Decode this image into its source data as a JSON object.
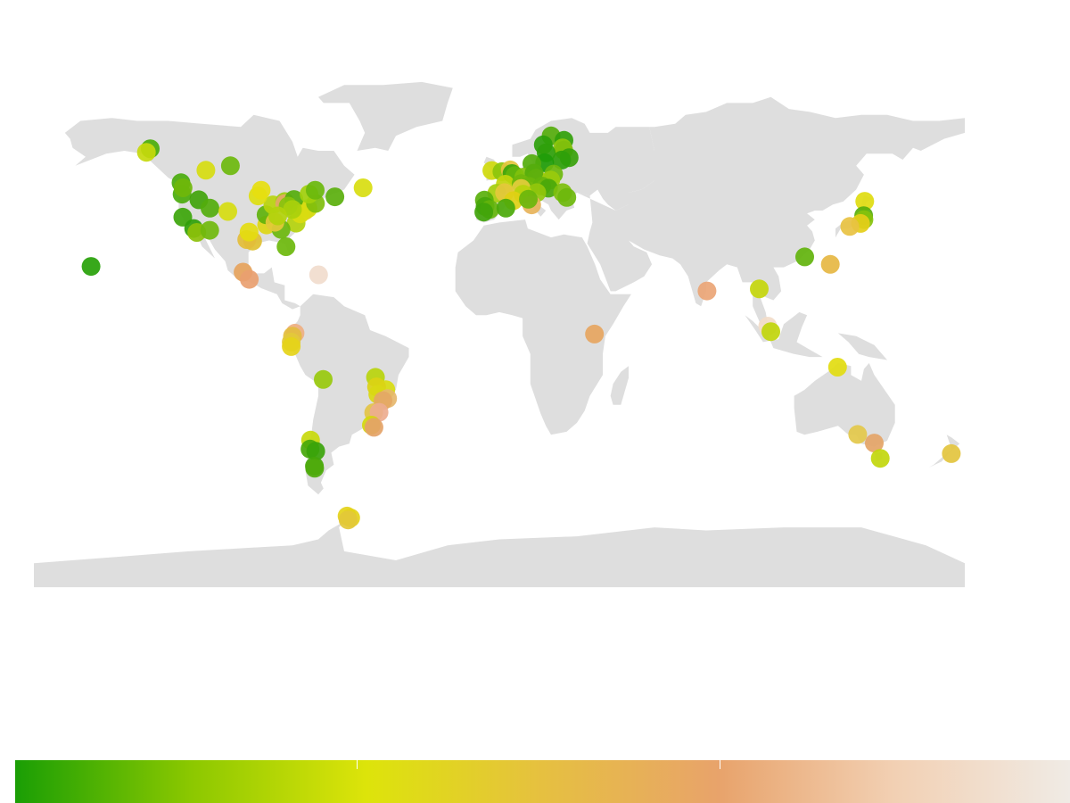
{
  "map": {
    "land_color": "#dedede",
    "background_color": "#ffffff",
    "continents": [
      "north-america",
      "greenland",
      "south-america",
      "europe",
      "africa",
      "asia",
      "australia",
      "antarctica",
      "new-zealand",
      "japan",
      "madagascar",
      "uk",
      "indonesia"
    ]
  },
  "legend": {
    "gradient_colors": [
      "#1a9e05",
      "#8cc800",
      "#dde40a",
      "#e6c040",
      "#e8a36b",
      "#f2d0b3",
      "#f0ebe5"
    ],
    "tick_count": 2
  },
  "points": [
    {
      "lat": 21.3,
      "lon": -157.9,
      "c": "#27a108"
    },
    {
      "lat": 60.7,
      "lon": -135.0,
      "c": "#4aac0a"
    },
    {
      "lat": 59.5,
      "lon": -136.5,
      "c": "#c6d90c"
    },
    {
      "lat": 53.5,
      "lon": -113.5,
      "c": "#d6dc10"
    },
    {
      "lat": 55.0,
      "lon": -104.0,
      "c": "#6cb80c"
    },
    {
      "lat": 49.3,
      "lon": -123.1,
      "c": "#4aab0c"
    },
    {
      "lat": 45.5,
      "lon": -122.7,
      "c": "#4aab0c"
    },
    {
      "lat": 47.6,
      "lon": -122.3,
      "c": "#6fb70a"
    },
    {
      "lat": 43.6,
      "lon": -116.2,
      "c": "#40a30a"
    },
    {
      "lat": 40.8,
      "lon": -111.9,
      "c": "#52ad0c"
    },
    {
      "lat": 39.7,
      "lon": -105.0,
      "c": "#d6dc10"
    },
    {
      "lat": 37.8,
      "lon": -122.4,
      "c": "#3ca50a"
    },
    {
      "lat": 34.0,
      "lon": -118.2,
      "c": "#30a00a"
    },
    {
      "lat": 32.7,
      "lon": -117.0,
      "c": "#8cc00a"
    },
    {
      "lat": 33.4,
      "lon": -112.0,
      "c": "#70b80c"
    },
    {
      "lat": 29.8,
      "lon": -95.4,
      "c": "#e0c030"
    },
    {
      "lat": 30.3,
      "lon": -97.7,
      "c": "#e3bd38"
    },
    {
      "lat": 32.8,
      "lon": -96.8,
      "c": "#e4dc10"
    },
    {
      "lat": 35.2,
      "lon": -90.0,
      "c": "#ddd614"
    },
    {
      "lat": 38.6,
      "lon": -90.2,
      "c": "#60b20c"
    },
    {
      "lat": 41.9,
      "lon": -87.6,
      "c": "#b9d40c"
    },
    {
      "lat": 44.9,
      "lon": -93.3,
      "c": "#ddde10"
    },
    {
      "lat": 46.8,
      "lon": -92.1,
      "c": "#e6de10"
    },
    {
      "lat": 43.0,
      "lon": -83.0,
      "c": "#9fcd0c"
    },
    {
      "lat": 42.3,
      "lon": -83.0,
      "c": "#e4a867"
    },
    {
      "lat": 39.9,
      "lon": -75.2,
      "c": "#e3c53b"
    },
    {
      "lat": 40.7,
      "lon": -74.0,
      "c": "#d7dc10"
    },
    {
      "lat": 42.4,
      "lon": -71.1,
      "c": "#7fbe0c"
    },
    {
      "lat": 43.7,
      "lon": -79.4,
      "c": "#55ad0c"
    },
    {
      "lat": 45.5,
      "lon": -73.6,
      "c": "#a2d00c"
    },
    {
      "lat": 46.8,
      "lon": -71.2,
      "c": "#6ab80c"
    },
    {
      "lat": 44.6,
      "lon": -63.6,
      "c": "#5aaf0c"
    },
    {
      "lat": 47.6,
      "lon": -52.7,
      "c": "#d8dd10"
    },
    {
      "lat": 35.8,
      "lon": -78.6,
      "c": "#b4d30c"
    },
    {
      "lat": 33.7,
      "lon": -84.4,
      "c": "#6bb70c"
    },
    {
      "lat": 36.1,
      "lon": -86.8,
      "c": "#e3c93a"
    },
    {
      "lat": 38.9,
      "lon": -77.0,
      "c": "#d9dc10"
    },
    {
      "lat": 41.5,
      "lon": -81.7,
      "c": "#88c30c"
    },
    {
      "lat": 40.4,
      "lon": -80.0,
      "c": "#a9d00c"
    },
    {
      "lat": 38.2,
      "lon": -85.7,
      "c": "#b2d30c"
    },
    {
      "lat": 27.9,
      "lon": -82.5,
      "c": "#6cb80c"
    },
    {
      "lat": 19.4,
      "lon": -99.1,
      "c": "#e6a35c"
    },
    {
      "lat": 17.0,
      "lon": -96.7,
      "c": "#e9a070"
    },
    {
      "lat": 18.5,
      "lon": -69.9,
      "c": "#f1dccd"
    },
    {
      "lat": -1.0,
      "lon": -79.0,
      "c": "#eeaf82"
    },
    {
      "lat": -2.0,
      "lon": -80.0,
      "c": "#e3bd3f"
    },
    {
      "lat": -4.0,
      "lon": -80.5,
      "c": "#e3c939"
    },
    {
      "lat": -5.5,
      "lon": -80.5,
      "c": "#e5d419"
    },
    {
      "lat": -16.5,
      "lon": -68.1,
      "c": "#98c90c"
    },
    {
      "lat": -15.8,
      "lon": -47.9,
      "c": "#b9d40c"
    },
    {
      "lat": -19.9,
      "lon": -43.9,
      "c": "#d8dc10"
    },
    {
      "lat": -19.0,
      "lon": -47.5,
      "c": "#dbd214"
    },
    {
      "lat": -21.5,
      "lon": -47.0,
      "c": "#d9d813"
    },
    {
      "lat": -22.9,
      "lon": -43.2,
      "c": "#e6b76e"
    },
    {
      "lat": -23.6,
      "lon": -45.0,
      "c": "#e4a864"
    },
    {
      "lat": -27.6,
      "lon": -48.6,
      "c": "#e3c345"
    },
    {
      "lat": -27.5,
      "lon": -46.5,
      "c": "#edad8f"
    },
    {
      "lat": -31.8,
      "lon": -49.5,
      "c": "#d4d80c"
    },
    {
      "lat": -32.5,
      "lon": -48.5,
      "c": "#e4a368"
    },
    {
      "lat": -36.8,
      "lon": -73.0,
      "c": "#c8d90c"
    },
    {
      "lat": -39.8,
      "lon": -73.2,
      "c": "#46a70a"
    },
    {
      "lat": -40.5,
      "lon": -71.0,
      "c": "#3aa30a"
    },
    {
      "lat": -45.5,
      "lon": -71.5,
      "c": "#44a70a"
    },
    {
      "lat": -46.2,
      "lon": -71.4,
      "c": "#4faa0c"
    },
    {
      "lat": -62.2,
      "lon": -58.9,
      "c": "#e4d31a"
    },
    {
      "lat": -62.8,
      "lon": -57.5,
      "c": "#e4d31a"
    },
    {
      "lat": -63.5,
      "lon": -58.5,
      "c": "#e3c83a"
    },
    {
      "lat": 65.0,
      "lon": 20.0,
      "c": "#55ad0c"
    },
    {
      "lat": 63.5,
      "lon": 25.0,
      "c": "#32a00a"
    },
    {
      "lat": 62.0,
      "lon": 17.0,
      "c": "#2ca00a"
    },
    {
      "lat": 61.0,
      "lon": 24.5,
      "c": "#8ec70c"
    },
    {
      "lat": 60.2,
      "lon": 24.9,
      "c": "#7fbe0c"
    },
    {
      "lat": 59.3,
      "lon": 18.1,
      "c": "#2f9f0a"
    },
    {
      "lat": 57.7,
      "lon": 27.0,
      "c": "#37a10a"
    },
    {
      "lat": 56.9,
      "lon": 24.1,
      "c": "#2ea00a"
    },
    {
      "lat": 56.0,
      "lon": 17.5,
      "c": "#1e9c08"
    },
    {
      "lat": 55.7,
      "lon": 12.6,
      "c": "#52ac0c"
    },
    {
      "lat": 53.4,
      "lon": -2.9,
      "c": "#cfd90c"
    },
    {
      "lat": 53.0,
      "lon": 1.0,
      "c": "#8bc50c"
    },
    {
      "lat": 53.6,
      "lon": 4.2,
      "c": "#e3c43c"
    },
    {
      "lat": 52.4,
      "lon": 4.9,
      "c": "#3aa40a"
    },
    {
      "lat": 51.7,
      "lon": 6.0,
      "c": "#63b50c"
    },
    {
      "lat": 51.2,
      "lon": 9.5,
      "c": "#82c20c"
    },
    {
      "lat": 50.8,
      "lon": 14.3,
      "c": "#d4d80c"
    },
    {
      "lat": 52.5,
      "lon": 13.4,
      "c": "#55ad0c"
    },
    {
      "lat": 52.2,
      "lon": 21.0,
      "c": "#6cb80c"
    },
    {
      "lat": 50.2,
      "lon": 19.9,
      "c": "#9acb0c"
    },
    {
      "lat": 48.8,
      "lon": 2.3,
      "c": "#c3d60c"
    },
    {
      "lat": 49.0,
      "lon": 8.4,
      "c": "#70b70c"
    },
    {
      "lat": 48.1,
      "lon": 11.6,
      "c": "#6ab60c"
    },
    {
      "lat": 47.4,
      "lon": 8.5,
      "c": "#e4cc3c"
    },
    {
      "lat": 48.2,
      "lon": 16.4,
      "c": "#64b40c"
    },
    {
      "lat": 47.5,
      "lon": 19.0,
      "c": "#4aa80a"
    },
    {
      "lat": 46.0,
      "lon": 14.5,
      "c": "#92c70c"
    },
    {
      "lat": 45.5,
      "lon": 9.2,
      "c": "#b8d40c"
    },
    {
      "lat": 46.0,
      "lon": 24.5,
      "c": "#7dbf0c"
    },
    {
      "lat": 44.4,
      "lon": 26.1,
      "c": "#6eb90c"
    },
    {
      "lat": 45.8,
      "lon": -1.0,
      "c": "#a6ce0c"
    },
    {
      "lat": 46.0,
      "lon": 2.0,
      "c": "#e4c83c"
    },
    {
      "lat": 43.3,
      "lon": 5.4,
      "c": "#dfd014"
    },
    {
      "lat": 43.5,
      "lon": -5.8,
      "c": "#5ab00c"
    },
    {
      "lat": 41.4,
      "lon": -5.5,
      "c": "#46a70a"
    },
    {
      "lat": 40.4,
      "lon": -3.7,
      "c": "#64b40c"
    },
    {
      "lat": 39.5,
      "lon": -6.0,
      "c": "#40a40a"
    },
    {
      "lat": 41.9,
      "lon": 12.5,
      "c": "#e7b35a"
    },
    {
      "lat": 40.8,
      "lon": 2.5,
      "c": "#4ba90a"
    },
    {
      "lat": 43.8,
      "lon": 11.2,
      "c": "#6ab60c"
    },
    {
      "lat": -1.3,
      "lon": 36.8,
      "c": "#e6a560"
    },
    {
      "lat": 13.1,
      "lon": 80.3,
      "c": "#eaa576"
    },
    {
      "lat": 24.5,
      "lon": 118.1,
      "c": "#62b30c"
    },
    {
      "lat": 22.0,
      "lon": 128.0,
      "c": "#e6b743"
    },
    {
      "lat": 13.8,
      "lon": 100.5,
      "c": "#c4d60c"
    },
    {
      "lat": 1.35,
      "lon": 103.8,
      "c": "#f2dcc9"
    },
    {
      "lat": -0.5,
      "lon": 105.0,
      "c": "#c0d50c"
    },
    {
      "lat": 43.1,
      "lon": 141.3,
      "c": "#e0dc10"
    },
    {
      "lat": 38.3,
      "lon": 140.9,
      "c": "#58ae0c"
    },
    {
      "lat": 37.0,
      "lon": 141.0,
      "c": "#86c20c"
    },
    {
      "lat": 35.7,
      "lon": 139.7,
      "c": "#e5ce18"
    },
    {
      "lat": 34.7,
      "lon": 135.5,
      "c": "#e8c242"
    },
    {
      "lat": -12.4,
      "lon": 130.8,
      "c": "#e2dc10"
    },
    {
      "lat": -34.9,
      "lon": 138.6,
      "c": "#e3c84a"
    },
    {
      "lat": -37.8,
      "lon": 145.0,
      "c": "#e4a467"
    },
    {
      "lat": -42.9,
      "lon": 147.3,
      "c": "#c2d70c"
    },
    {
      "lat": -41.3,
      "lon": 174.8,
      "c": "#e3c43e"
    }
  ]
}
